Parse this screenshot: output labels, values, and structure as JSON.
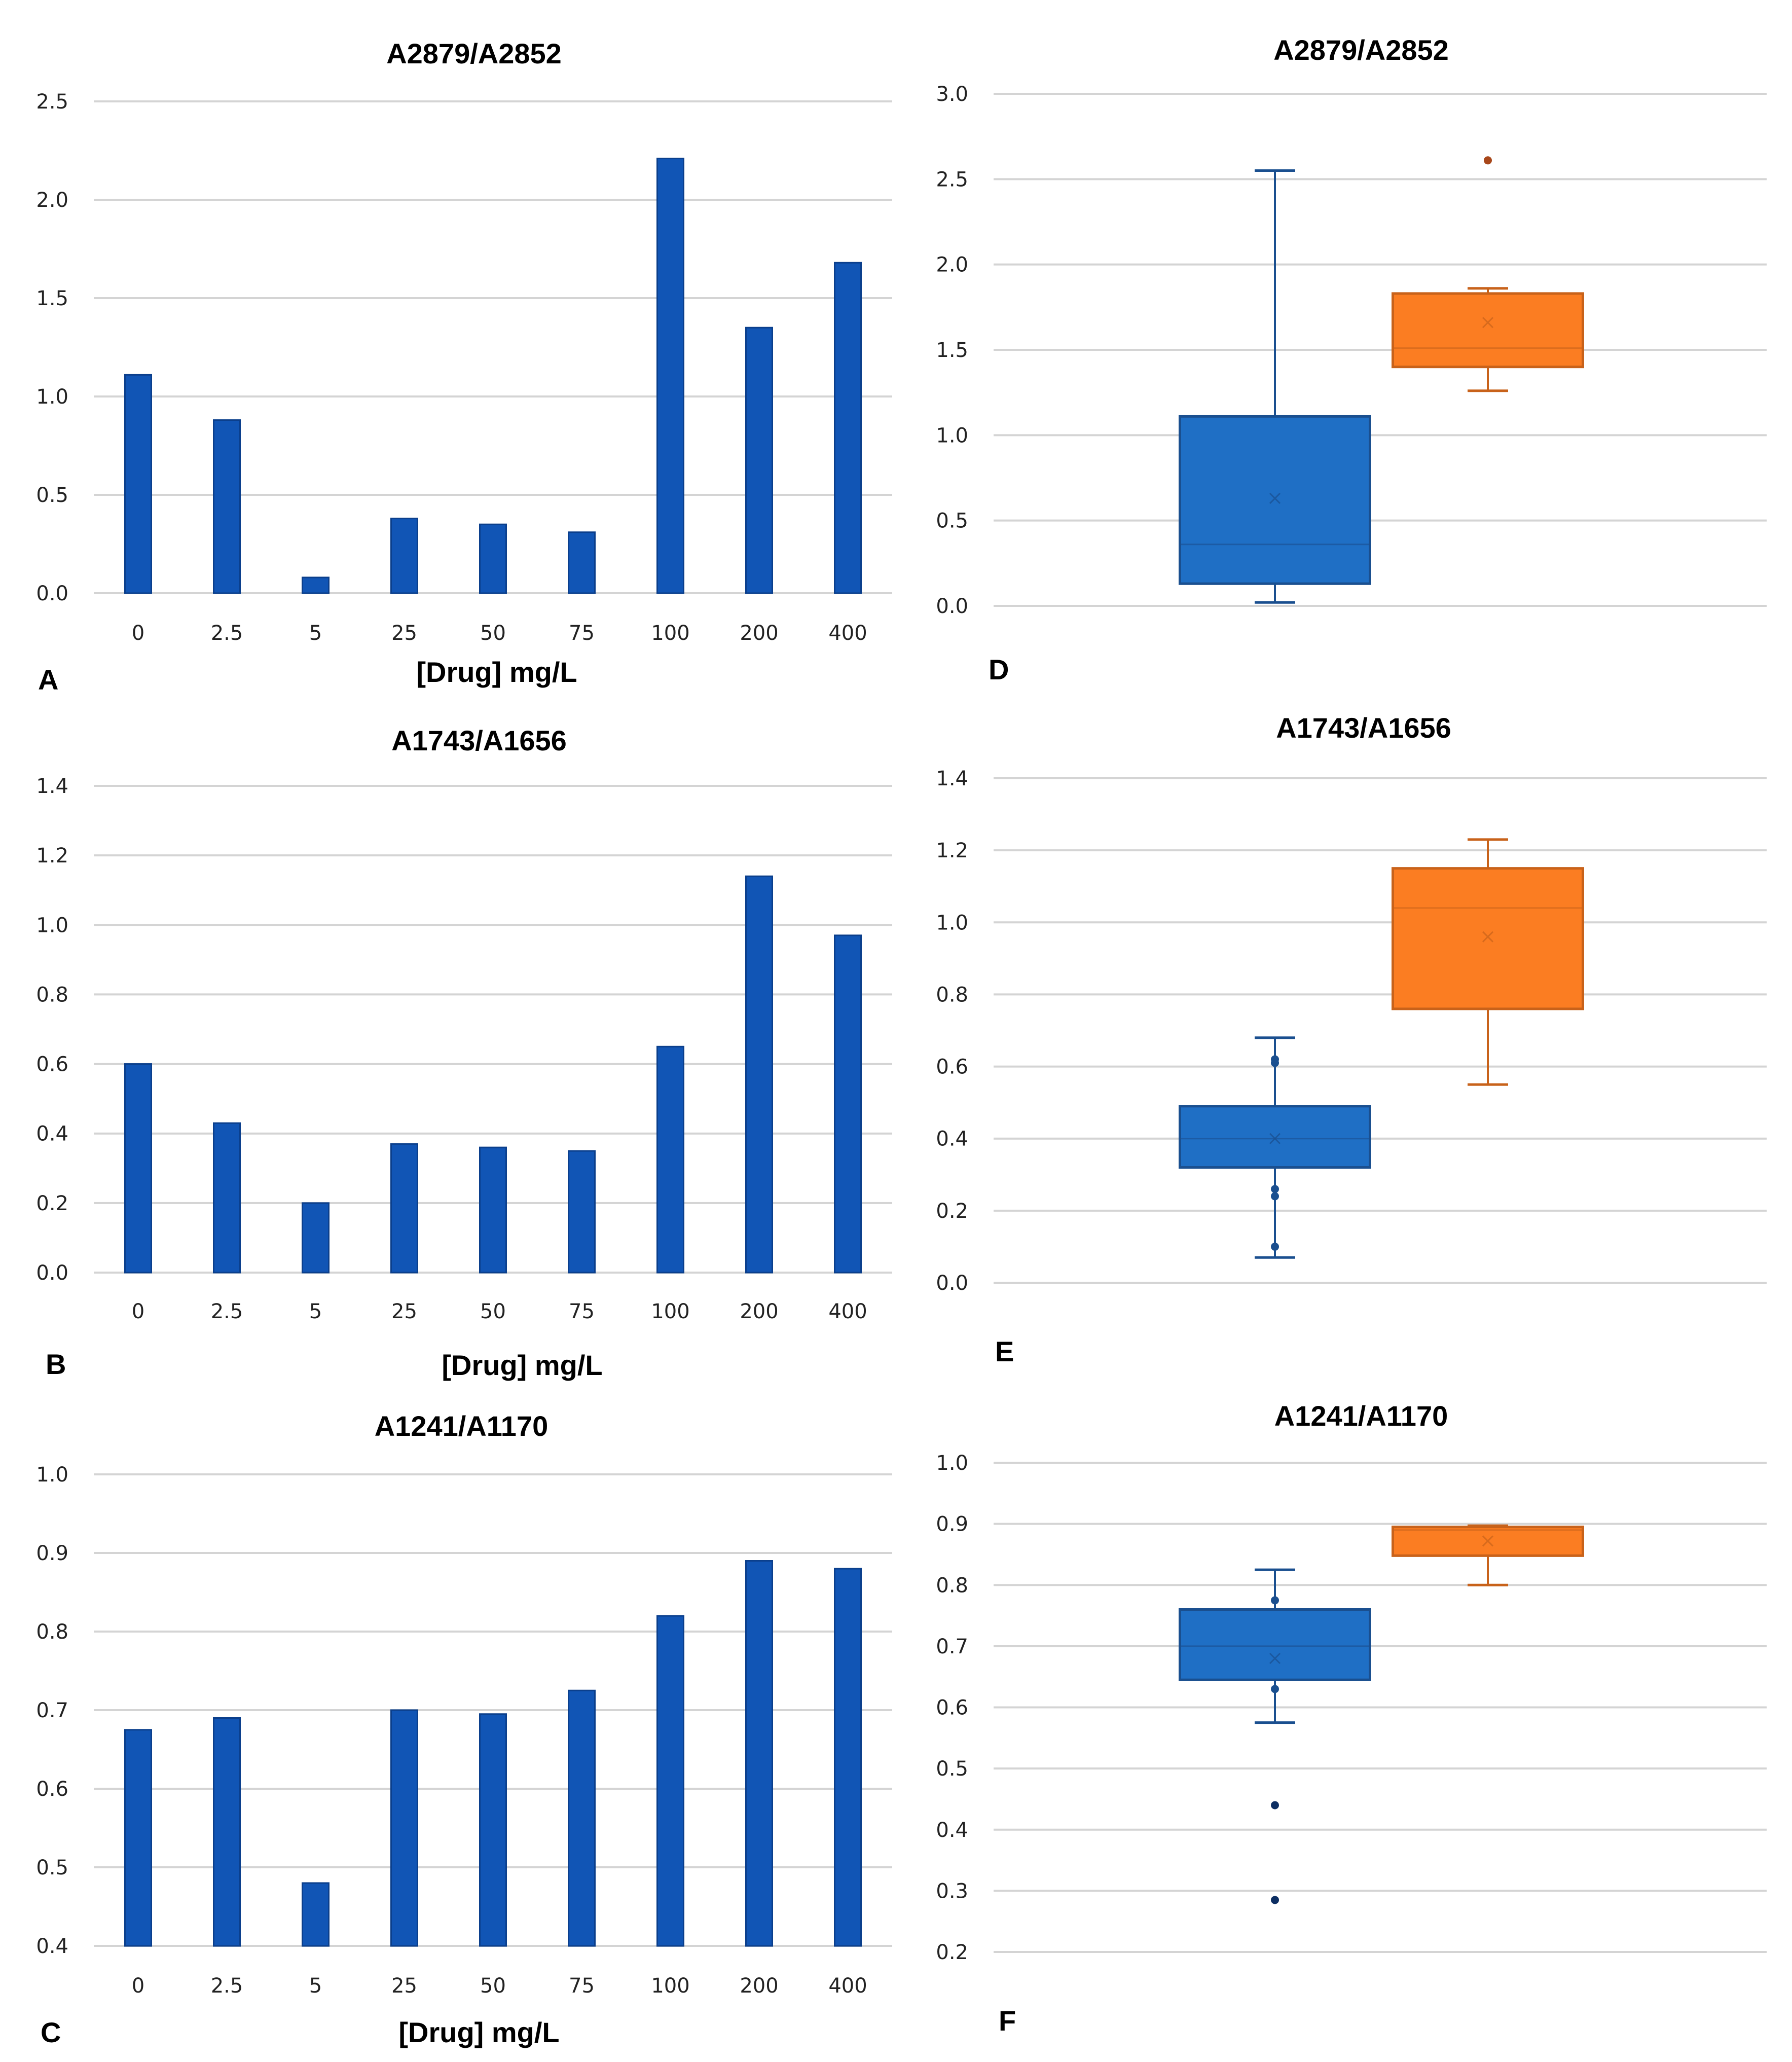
{
  "colors": {
    "bar": "#1155b5",
    "bar_edge": "#0b3f8c",
    "box_blue": "#1f6fc5",
    "box_blue_edge": "#1a4f8f",
    "box_orange": "#fb7d22",
    "box_orange_edge": "#c8621a",
    "grid": "#d4d4d4"
  },
  "chart_data": [
    {
      "panel": "A",
      "type": "bar",
      "title": "A2879/A2852",
      "xlabel": "[Drug] mg/L",
      "ylabel": "",
      "categories": [
        "0",
        "2.5",
        "5",
        "25",
        "50",
        "75",
        "100",
        "200",
        "400"
      ],
      "values": [
        1.11,
        0.88,
        0.08,
        0.38,
        0.35,
        0.31,
        2.21,
        1.35,
        1.68
      ],
      "ylim": [
        0,
        2.5
      ],
      "yticks": [
        "0.0",
        "0.5",
        "1.0",
        "1.5",
        "2.0",
        "2.5"
      ],
      "grid": true
    },
    {
      "panel": "B",
      "type": "bar",
      "title": "A1743/A1656",
      "xlabel": "[Drug] mg/L",
      "ylabel": "",
      "categories": [
        "0",
        "2.5",
        "5",
        "25",
        "50",
        "75",
        "100",
        "200",
        "400"
      ],
      "values": [
        0.6,
        0.43,
        0.2,
        0.37,
        0.36,
        0.35,
        0.65,
        1.14,
        0.97
      ],
      "ylim": [
        0,
        1.4
      ],
      "yticks": [
        "0.0",
        "0.2",
        "0.4",
        "0.6",
        "0.8",
        "1.0",
        "1.2",
        "1.4"
      ],
      "grid": true
    },
    {
      "panel": "C",
      "type": "bar",
      "title": "A1241/A1170",
      "xlabel": "[Drug] mg/L",
      "ylabel": "",
      "categories": [
        "0",
        "2.5",
        "5",
        "25",
        "50",
        "75",
        "100",
        "200",
        "400"
      ],
      "values": [
        0.675,
        0.69,
        0.48,
        0.7,
        0.695,
        0.725,
        0.82,
        0.89,
        0.88
      ],
      "ylim": [
        0.4,
        1.0
      ],
      "yticks": [
        "0.4",
        "0.5",
        "0.6",
        "0.7",
        "0.8",
        "0.9",
        "1.0"
      ],
      "grid": true
    },
    {
      "panel": "D",
      "type": "box",
      "title": "A2879/A2852",
      "xlabel": "",
      "ylabel": "",
      "ylim": [
        0,
        3.0
      ],
      "yticks": [
        "0.0",
        "0.5",
        "1.0",
        "1.5",
        "2.0",
        "2.5",
        "3.0"
      ],
      "grid": true,
      "boxes": [
        {
          "color": "blue",
          "min": 0.02,
          "q1": 0.13,
          "median": 0.36,
          "q3": 1.11,
          "max": 2.55,
          "mean": 0.63,
          "outliers": []
        },
        {
          "color": "orange",
          "min": 1.26,
          "q1": 1.4,
          "median": 1.51,
          "q3": 1.83,
          "max": 1.86,
          "mean": 1.66,
          "outliers": [
            2.61
          ]
        }
      ]
    },
    {
      "panel": "E",
      "type": "box",
      "title": "A1743/A1656",
      "xlabel": "",
      "ylabel": "",
      "ylim": [
        0,
        1.4
      ],
      "yticks": [
        "0.0",
        "0.2",
        "0.4",
        "0.6",
        "0.8",
        "1.0",
        "1.2",
        "1.4"
      ],
      "grid": true,
      "boxes": [
        {
          "color": "blue",
          "min": 0.07,
          "q1": 0.32,
          "median": 0.4,
          "q3": 0.49,
          "max": 0.68,
          "mean": 0.4,
          "outliers": [],
          "points": [
            0.1,
            0.24,
            0.26,
            0.61,
            0.62
          ]
        },
        {
          "color": "orange",
          "min": 0.55,
          "q1": 0.76,
          "median": 1.04,
          "q3": 1.15,
          "max": 1.23,
          "mean": 0.96,
          "outliers": []
        }
      ]
    },
    {
      "panel": "F",
      "type": "box",
      "title": "A1241/A1170",
      "xlabel": "",
      "ylabel": "",
      "ylim": [
        0.2,
        1.0
      ],
      "yticks": [
        "0.2",
        "0.3",
        "0.4",
        "0.5",
        "0.6",
        "0.7",
        "0.8",
        "0.9",
        "1.0"
      ],
      "grid": true,
      "boxes": [
        {
          "color": "blue",
          "min": 0.575,
          "q1": 0.645,
          "median": 0.7,
          "q3": 0.76,
          "max": 0.825,
          "mean": 0.68,
          "outliers": [
            0.44,
            0.285
          ],
          "points": [
            0.63,
            0.775
          ]
        },
        {
          "color": "orange",
          "min": 0.8,
          "q1": 0.848,
          "median": 0.89,
          "q3": 0.895,
          "max": 0.897,
          "mean": 0.872,
          "outliers": []
        }
      ]
    }
  ]
}
